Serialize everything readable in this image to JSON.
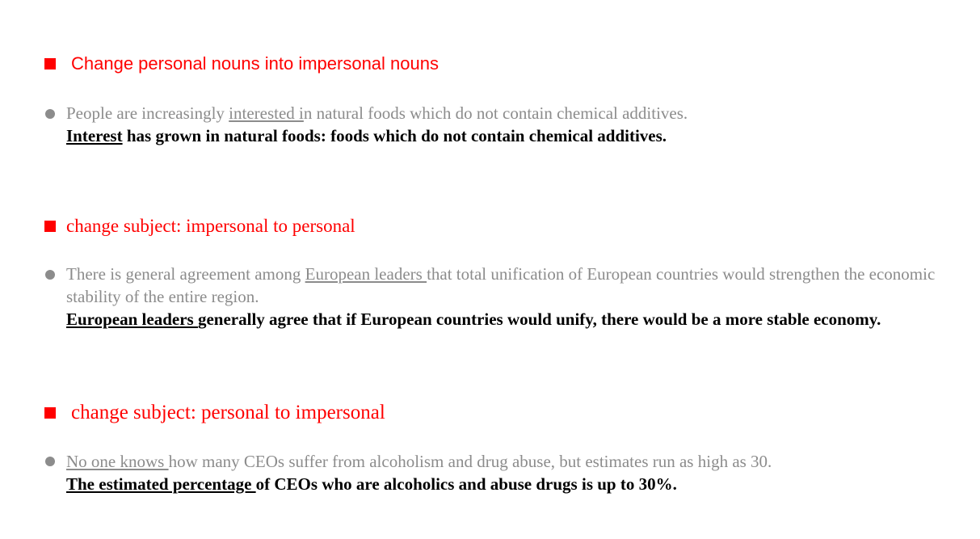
{
  "sections": [
    {
      "heading": "Change personal nouns into impersonal nouns",
      "original": {
        "pre": "People are increasingly ",
        "underlined": "interested i",
        "post": "n natural foods which do not contain chemical additives."
      },
      "revised": {
        "underlined": "Interest",
        "post": " has grown in natural foods: foods which do not contain chemical additives."
      }
    },
    {
      "heading": "change subject: impersonal to personal",
      "original": {
        "pre": "There is general agreement among ",
        "underlined": "European leaders ",
        "post": "that total unification of European countries would strengthen the economic stability of the entire region."
      },
      "revised": {
        "underlined": "European leaders ",
        "post": "generally agree that if European countries would unify, there would be a more stable economy."
      }
    },
    {
      "heading": "change subject: personal to impersonal",
      "original": {
        "pre": "",
        "underlined": "No one knows ",
        "post": "how many CEOs suffer from alcoholism and drug abuse, but estimates run as high as 30."
      },
      "revised": {
        "underlined": "The estimated percentage ",
        "post": "of CEOs who are alcoholics and abuse drugs is up to 30%."
      }
    }
  ]
}
